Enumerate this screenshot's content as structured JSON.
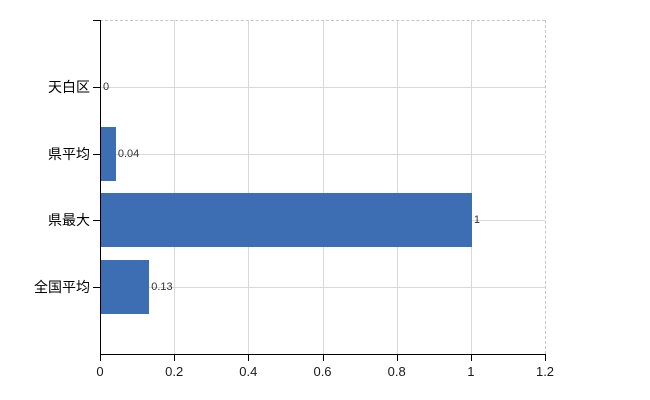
{
  "chart_data": {
    "type": "bar",
    "orientation": "horizontal",
    "title": "",
    "xlabel": "",
    "ylabel": "",
    "categories": [
      "天白区",
      "県平均",
      "県最大",
      "全国平均"
    ],
    "values": [
      0,
      0.04,
      1,
      0.13
    ],
    "value_labels": [
      "0",
      "0.04",
      "1",
      "0.13"
    ],
    "xlim": [
      0,
      1.2
    ],
    "x_ticks": [
      0,
      0.2,
      0.4,
      0.6,
      0.8,
      1,
      1.2
    ],
    "x_tick_labels": [
      "0",
      "0.2",
      "0.4",
      "0.6",
      "0.8",
      "1",
      "1.2"
    ],
    "grid": true,
    "legend": "none",
    "bar_color": "#3d6db2",
    "gridline_color": "#d9d9d9",
    "axis_color": "#000000"
  }
}
